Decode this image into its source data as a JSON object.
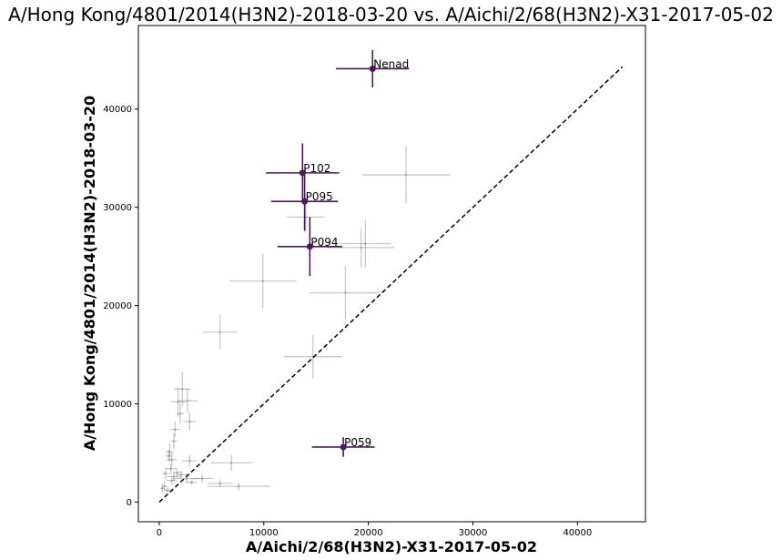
{
  "chart_data": {
    "type": "scatter",
    "title": "A/Hong Kong/4801/2014(H3N2)-2018-03-20 vs. A/Aichi/2/68(H3N2)-X31-2017-05-02",
    "xlabel": "A/Aichi/2/68(H3N2)-X31-2017-05-02",
    "ylabel": "A/Hong Kong/4801/2014(H3N2)-2018-03-20",
    "xlim": [
      -2000,
      46500
    ],
    "ylim": [
      -2000,
      48500
    ],
    "xticks": [
      0,
      10000,
      20000,
      30000,
      40000
    ],
    "yticks": [
      0,
      10000,
      20000,
      30000,
      40000
    ],
    "xtick_labels": [
      "0",
      "10000",
      "20000",
      "30000",
      "40000"
    ],
    "ytick_labels": [
      "0",
      "10000",
      "20000",
      "30000",
      "40000"
    ],
    "grid": false,
    "diagonal": {
      "from": [
        0,
        0
      ],
      "to": [
        44300,
        44300
      ],
      "style": "dashed",
      "color": "#000000"
    },
    "highlight_color": "#4a1a54",
    "background_color": "#888888",
    "highlighted": [
      {
        "label": "Nenad",
        "x": 20400,
        "y": 44100,
        "xerr": 3500,
        "yerr": 1900
      },
      {
        "label": "P102",
        "x": 13700,
        "y": 33500,
        "xerr": 3500,
        "yerr": 3000
      },
      {
        "label": "P095",
        "x": 13900,
        "y": 30600,
        "xerr": 3200,
        "yerr": 3000
      },
      {
        "label": "P094",
        "x": 14400,
        "y": 26000,
        "xerr": 3100,
        "yerr": 3000
      },
      {
        "label": "P059",
        "x": 17600,
        "y": 5600,
        "xerr": 3000,
        "yerr": 1000
      }
    ],
    "background": [
      {
        "x": 23600,
        "y": 33300,
        "xerr": 4200,
        "yerr": 2900
      },
      {
        "x": 14000,
        "y": 29000,
        "xerr": 1800,
        "yerr": 1500
      },
      {
        "x": 19700,
        "y": 26300,
        "xerr": 2500,
        "yerr": 2400
      },
      {
        "x": 19300,
        "y": 25900,
        "xerr": 3200,
        "yerr": 2000
      },
      {
        "x": 9900,
        "y": 22500,
        "xerr": 3200,
        "yerr": 2800
      },
      {
        "x": 17800,
        "y": 21300,
        "xerr": 3400,
        "yerr": 2700
      },
      {
        "x": 5800,
        "y": 17300,
        "xerr": 1600,
        "yerr": 1700
      },
      {
        "x": 14700,
        "y": 14800,
        "xerr": 2800,
        "yerr": 2200
      },
      {
        "x": 2200,
        "y": 11500,
        "xerr": 800,
        "yerr": 1800
      },
      {
        "x": 2700,
        "y": 10300,
        "xerr": 1000,
        "yerr": 1200
      },
      {
        "x": 1800,
        "y": 10200,
        "xerr": 700,
        "yerr": 1500
      },
      {
        "x": 2900,
        "y": 8200,
        "xerr": 600,
        "yerr": 900
      },
      {
        "x": 1400,
        "y": 6200,
        "xerr": 300,
        "yerr": 800
      },
      {
        "x": 1000,
        "y": 5100,
        "xerr": 400,
        "yerr": 900
      },
      {
        "x": 1200,
        "y": 4300,
        "xerr": 500,
        "yerr": 700
      },
      {
        "x": 2900,
        "y": 4200,
        "xerr": 700,
        "yerr": 600
      },
      {
        "x": 6900,
        "y": 4000,
        "xerr": 2000,
        "yerr": 800
      },
      {
        "x": 1100,
        "y": 3400,
        "xerr": 500,
        "yerr": 500
      },
      {
        "x": 600,
        "y": 2900,
        "xerr": 300,
        "yerr": 600
      },
      {
        "x": 1400,
        "y": 2600,
        "xerr": 700,
        "yerr": 500
      },
      {
        "x": 2600,
        "y": 2400,
        "xerr": 1300,
        "yerr": 500
      },
      {
        "x": 4100,
        "y": 2400,
        "xerr": 1000,
        "yerr": 400
      },
      {
        "x": 1200,
        "y": 2200,
        "xerr": 500,
        "yerr": 500
      },
      {
        "x": 3100,
        "y": 2000,
        "xerr": 500,
        "yerr": 300
      },
      {
        "x": 5800,
        "y": 1900,
        "xerr": 1200,
        "yerr": 400
      },
      {
        "x": 7600,
        "y": 1600,
        "xerr": 3000,
        "yerr": 400
      },
      {
        "x": 500,
        "y": 1600,
        "xerr": 200,
        "yerr": 500
      },
      {
        "x": 300,
        "y": 1400,
        "xerr": 200,
        "yerr": 500
      },
      {
        "x": 800,
        "y": 1200,
        "xerr": 300,
        "yerr": 400
      },
      {
        "x": 1700,
        "y": 3000,
        "xerr": 400,
        "yerr": 500
      },
      {
        "x": 1500,
        "y": 7400,
        "xerr": 500,
        "yerr": 800
      },
      {
        "x": 2000,
        "y": 9000,
        "xerr": 400,
        "yerr": 1000
      },
      {
        "x": 900,
        "y": 4700,
        "xerr": 300,
        "yerr": 600
      },
      {
        "x": 2100,
        "y": 2800,
        "xerr": 500,
        "yerr": 400
      }
    ]
  }
}
